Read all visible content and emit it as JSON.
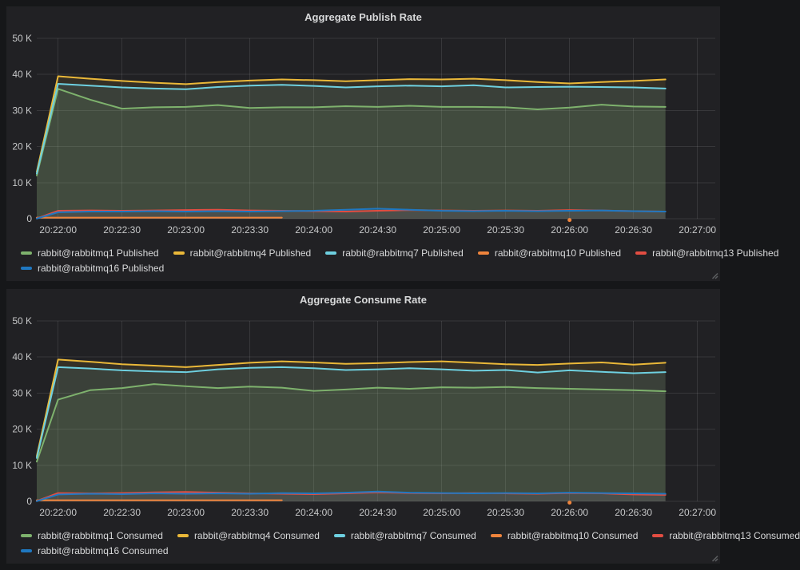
{
  "page": {
    "background": "#161719",
    "panel_background": "#212124"
  },
  "palette": {
    "green": "#7EB26D",
    "yellow": "#EAB839",
    "cyan": "#6ED0E0",
    "orange": "#EF843C",
    "red": "#E24D42",
    "blue": "#1F78C1"
  },
  "chart_data": [
    {
      "type": "area",
      "title": "Aggregate Publish Rate",
      "xlabel": "",
      "ylabel": "",
      "ylim": [
        0,
        50000
      ],
      "y_ticks": [
        "0",
        "10 K",
        "20 K",
        "30 K",
        "40 K",
        "50 K"
      ],
      "x_ticks": [
        "20:22:00",
        "20:22:30",
        "20:23:00",
        "20:23:30",
        "20:24:00",
        "20:24:30",
        "20:25:00",
        "20:25:30",
        "20:26:00",
        "20:26:30",
        "20:27:00"
      ],
      "grid": true,
      "legend_position": "bottom",
      "x": [
        "20:21:50",
        "20:22:00",
        "20:22:15",
        "20:22:30",
        "20:22:45",
        "20:23:00",
        "20:23:15",
        "20:23:30",
        "20:23:45",
        "20:24:00",
        "20:24:15",
        "20:24:30",
        "20:24:45",
        "20:25:00",
        "20:25:15",
        "20:25:30",
        "20:25:45",
        "20:26:00",
        "20:26:15",
        "20:26:30",
        "20:26:45"
      ],
      "series": [
        {
          "name": "rabbit@rabbitmq1 Published",
          "color": "#7EB26D",
          "values": [
            12000,
            36000,
            33000,
            30500,
            30900,
            31000,
            31500,
            30700,
            30900,
            30900,
            31200,
            31000,
            31300,
            31000,
            31000,
            30900,
            30300,
            30800,
            31600,
            31100,
            31000
          ]
        },
        {
          "name": "rabbit@rabbitmq4 Published",
          "color": "#EAB839",
          "values": [
            13000,
            39500,
            38800,
            38200,
            37700,
            37300,
            37900,
            38300,
            38600,
            38400,
            38100,
            38400,
            38700,
            38600,
            38800,
            38400,
            37900,
            37500,
            37900,
            38200,
            38600
          ]
        },
        {
          "name": "rabbit@rabbitmq7 Published",
          "color": "#6ED0E0",
          "values": [
            12500,
            37400,
            36900,
            36400,
            36100,
            35900,
            36500,
            36900,
            37100,
            36800,
            36400,
            36700,
            36900,
            36700,
            37000,
            36400,
            36500,
            36600,
            36500,
            36400,
            36100
          ]
        },
        {
          "name": "rabbit@rabbitmq10 Published",
          "color": "#EF843C",
          "values": [
            300,
            300,
            300,
            300,
            300,
            300,
            300,
            300,
            300,
            null,
            null,
            null,
            null,
            null,
            null,
            null,
            null,
            300,
            null,
            null,
            null
          ]
        },
        {
          "name": "rabbit@rabbitmq13 Published",
          "color": "#E24D42",
          "values": [
            100,
            2200,
            2300,
            2200,
            2300,
            2400,
            2500,
            2300,
            2200,
            2100,
            2000,
            2200,
            2400,
            2300,
            2200,
            2300,
            2200,
            2400,
            2300,
            2100,
            2000
          ]
        },
        {
          "name": "rabbit@rabbitmq16 Published",
          "color": "#1F78C1",
          "values": [
            50,
            1800,
            2000,
            2000,
            2100,
            2000,
            2100,
            2000,
            2100,
            2200,
            2500,
            2800,
            2500,
            2200,
            2100,
            2200,
            2100,
            2200,
            2300,
            2100,
            2000
          ]
        }
      ]
    },
    {
      "type": "area",
      "title": "Aggregate Consume Rate",
      "xlabel": "",
      "ylabel": "",
      "ylim": [
        0,
        50000
      ],
      "y_ticks": [
        "0",
        "10 K",
        "20 K",
        "30 K",
        "40 K",
        "50 K"
      ],
      "x_ticks": [
        "20:22:00",
        "20:22:30",
        "20:23:00",
        "20:23:30",
        "20:24:00",
        "20:24:30",
        "20:25:00",
        "20:25:30",
        "20:26:00",
        "20:26:30",
        "20:27:00"
      ],
      "grid": true,
      "legend_position": "bottom",
      "x": [
        "20:21:50",
        "20:22:00",
        "20:22:15",
        "20:22:30",
        "20:22:45",
        "20:23:00",
        "20:23:15",
        "20:23:30",
        "20:23:45",
        "20:24:00",
        "20:24:15",
        "20:24:30",
        "20:24:45",
        "20:25:00",
        "20:25:15",
        "20:25:30",
        "20:25:45",
        "20:26:00",
        "20:26:15",
        "20:26:30",
        "20:26:45"
      ],
      "series": [
        {
          "name": "rabbit@rabbitmq1 Consumed",
          "color": "#7EB26D",
          "values": [
            11000,
            28200,
            30800,
            31400,
            32500,
            31900,
            31400,
            31800,
            31500,
            30600,
            31000,
            31500,
            31200,
            31600,
            31500,
            31700,
            31400,
            31200,
            31000,
            30800,
            30500
          ]
        },
        {
          "name": "rabbit@rabbitmq4 Consumed",
          "color": "#EAB839",
          "values": [
            12500,
            39300,
            38700,
            38000,
            37600,
            37200,
            37800,
            38400,
            38800,
            38500,
            38100,
            38300,
            38600,
            38800,
            38400,
            38000,
            37800,
            38200,
            38500,
            37900,
            38400
          ]
        },
        {
          "name": "rabbit@rabbitmq7 Consumed",
          "color": "#6ED0E0",
          "values": [
            12000,
            37200,
            36800,
            36300,
            36000,
            35800,
            36600,
            37000,
            37200,
            36900,
            36400,
            36600,
            36900,
            36600,
            36200,
            36400,
            35700,
            36300,
            35900,
            35500,
            35800
          ]
        },
        {
          "name": "rabbit@rabbitmq10 Consumed",
          "color": "#EF843C",
          "values": [
            300,
            300,
            300,
            300,
            300,
            300,
            300,
            300,
            300,
            null,
            null,
            null,
            null,
            null,
            null,
            null,
            null,
            300,
            null,
            null,
            null
          ]
        },
        {
          "name": "rabbit@rabbitmq13 Consumed",
          "color": "#E24D42",
          "values": [
            100,
            2300,
            2200,
            2300,
            2500,
            2600,
            2400,
            2200,
            2100,
            2000,
            2200,
            2500,
            2300,
            2200,
            2300,
            2200,
            2100,
            2300,
            2200,
            1900,
            1800
          ]
        },
        {
          "name": "rabbit@rabbitmq16 Consumed",
          "color": "#1F78C1",
          "values": [
            50,
            1900,
            2100,
            2000,
            2200,
            2100,
            2200,
            2100,
            2300,
            2200,
            2400,
            2700,
            2400,
            2300,
            2200,
            2300,
            2200,
            2400,
            2300,
            2200,
            2100
          ]
        }
      ]
    }
  ]
}
